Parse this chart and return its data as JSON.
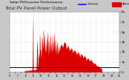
{
  "title": "Total PV Panel Power Output",
  "subtitle": "Solar PV/Inverter Performance",
  "bg_color": "#c8c8c8",
  "plot_bg_color": "#ffffff",
  "area_color": "#dd0000",
  "line_color": "#0000dd",
  "line_value": 500,
  "ylim": [
    0,
    6000
  ],
  "ytick_vals": [
    0,
    1000,
    2000,
    3000,
    4000,
    5000,
    6000
  ],
  "ytick_labels": [
    "0",
    "1k",
    "2k",
    "3k",
    "4k",
    "5k",
    "6k"
  ],
  "num_points": 600
}
